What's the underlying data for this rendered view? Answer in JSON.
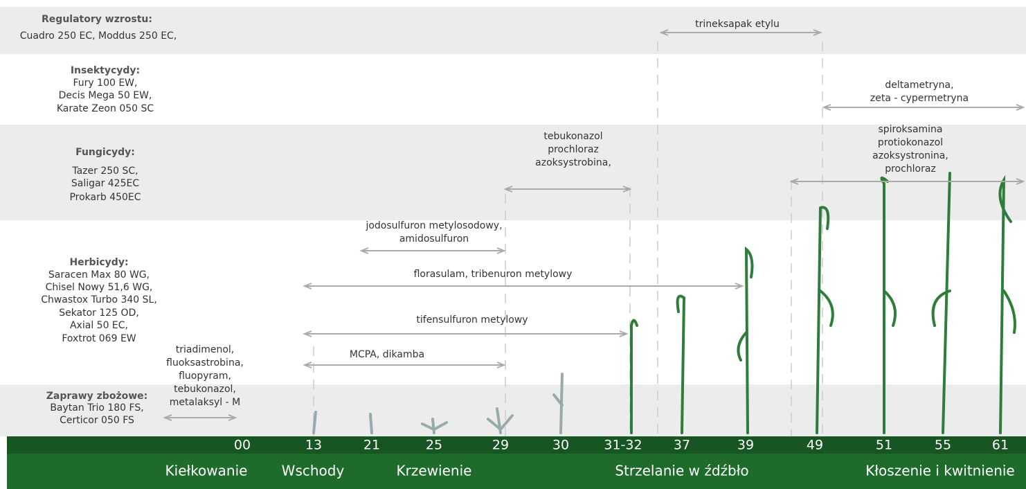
{
  "groups": [
    {
      "heading": "Regulatory wzrostu:",
      "items": [
        "Cuadro 250 EC, Moddus 250 EC,"
      ]
    },
    {
      "heading": "Insektycydy:",
      "items": [
        "Fury 100 EW,",
        "Decis Mega 50 EW,",
        "Karate Zeon 050 SC"
      ]
    },
    {
      "heading": "Fungicydy:",
      "items": [
        "Tazer 250 SC,",
        "Saligar 425EC",
        "Prokarb 450EC"
      ]
    },
    {
      "heading": "Herbicydy:",
      "items": [
        "Saracen Max 80 WG,",
        "Chisel Nowy 51,6 WG,",
        "Chwastox Turbo 340 SL,",
        "Sekator 125 OD,",
        "Axial 50 EC,",
        "Foxtrot 069 EW"
      ]
    },
    {
      "heading": "Zaprawy zbożowe:",
      "items": [
        "Baytan Trio 180 FS,",
        "Certicor 050 FS"
      ]
    }
  ],
  "treatments": [
    {
      "lines": [
        "trineksapak etylu"
      ]
    },
    {
      "lines": [
        "deltametryna,",
        "zeta - cypermetryna"
      ]
    },
    {
      "lines": [
        "spiroksamina",
        "protiokonazol",
        "azoksystronina,",
        "prochloraz"
      ]
    },
    {
      "lines": [
        "tebukonazol",
        "prochloraz",
        "azoksystrobina,"
      ]
    },
    {
      "lines": [
        "jodosulfuron metylosodowy,",
        "amidosulfuron"
      ]
    },
    {
      "lines": [
        "florasulam, tribenuron metylowy"
      ]
    },
    {
      "lines": [
        "tifensulfuron metylowy"
      ]
    },
    {
      "lines": [
        "MCPA, dikamba"
      ]
    },
    {
      "lines": [
        "triadimenol,",
        "fluoksastrobina,",
        "fluopyram,",
        "tebukonazol,",
        "metalaksyl - M"
      ]
    }
  ],
  "stages": [
    "00",
    "13",
    "21",
    "25",
    "29",
    "30",
    "31-32",
    "37",
    "39",
    "49",
    "51",
    "55",
    "61"
  ],
  "phases": [
    "Kiełkowanie",
    "Wschody",
    "Krzewienie",
    "Strzelanie w źdźbło",
    "Kłoszenie i kwitnienie"
  ]
}
